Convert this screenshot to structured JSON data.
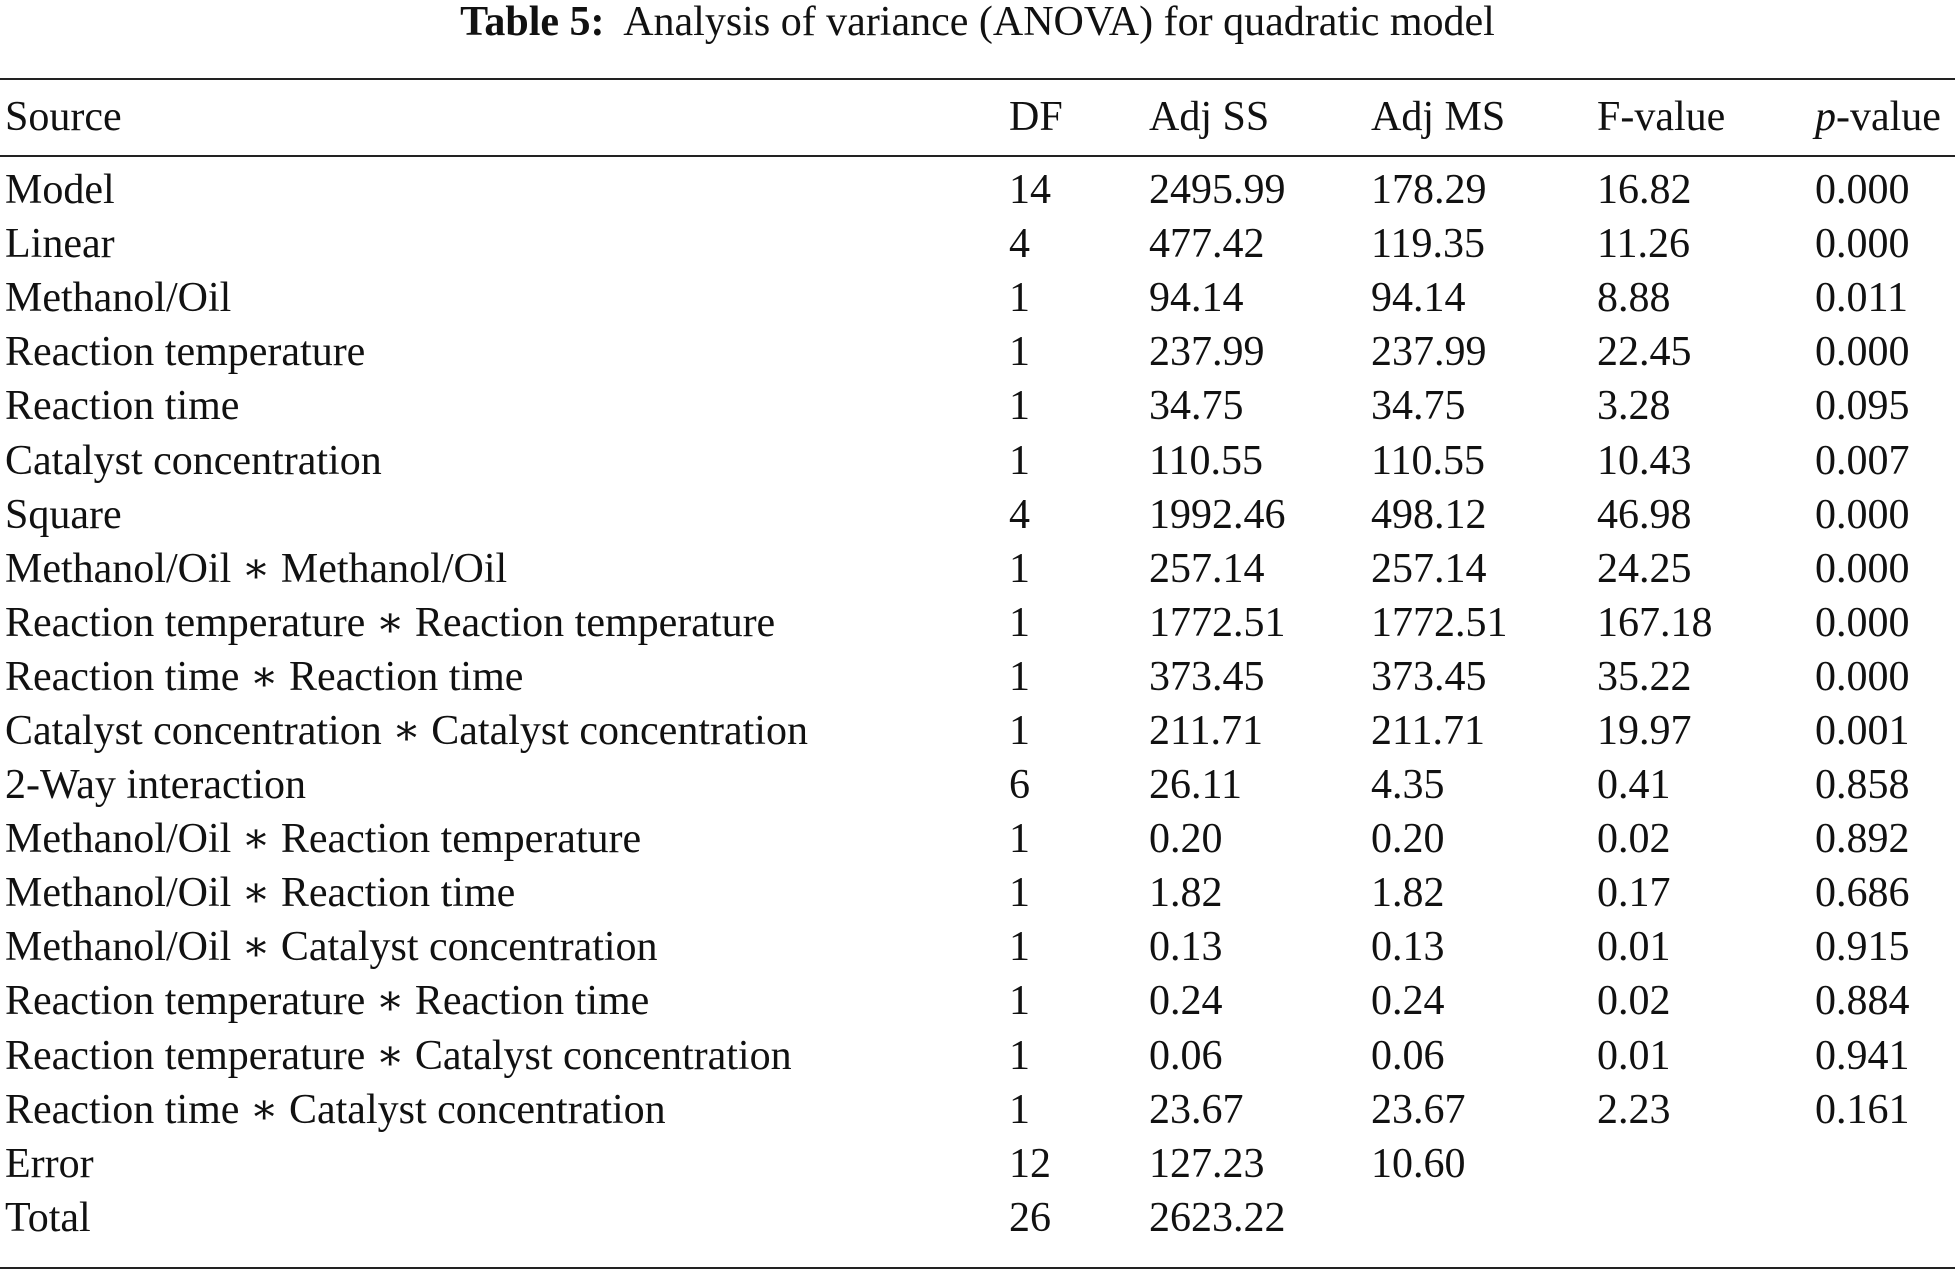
{
  "caption": {
    "label": "Table 5:",
    "title": "Analysis of variance (ANOVA) for quadratic model"
  },
  "headers": {
    "source": "Source",
    "df": "DF",
    "adj_ss": "Adj SS",
    "adj_ms": "Adj MS",
    "f_value": "F-value",
    "p_italic": "p",
    "p_rest": "-value"
  },
  "rows": [
    {
      "source": "Model",
      "df": "14",
      "adj_ss": "2495.99",
      "adj_ms": "178.29",
      "f_value": "16.82",
      "p_value": "0.000"
    },
    {
      "source": "Linear",
      "df": "4",
      "adj_ss": "477.42",
      "adj_ms": "119.35",
      "f_value": "11.26",
      "p_value": "0.000"
    },
    {
      "source": "Methanol/Oil",
      "df": "1",
      "adj_ss": "94.14",
      "adj_ms": "94.14",
      "f_value": "8.88",
      "p_value": "0.011"
    },
    {
      "source": "Reaction temperature",
      "df": "1",
      "adj_ss": "237.99",
      "adj_ms": "237.99",
      "f_value": "22.45",
      "p_value": "0.000"
    },
    {
      "source": "Reaction time",
      "df": "1",
      "adj_ss": "34.75",
      "adj_ms": "34.75",
      "f_value": "3.28",
      "p_value": "0.095"
    },
    {
      "source": "Catalyst concentration",
      "df": "1",
      "adj_ss": "110.55",
      "adj_ms": "110.55",
      "f_value": "10.43",
      "p_value": "0.007"
    },
    {
      "source": "Square",
      "df": "4",
      "adj_ss": "1992.46",
      "adj_ms": "498.12",
      "f_value": "46.98",
      "p_value": "0.000"
    },
    {
      "source": "Methanol/Oil ∗ Methanol/Oil",
      "df": "1",
      "adj_ss": "257.14",
      "adj_ms": "257.14",
      "f_value": "24.25",
      "p_value": "0.000"
    },
    {
      "source": "Reaction temperature ∗ Reaction temperature",
      "df": "1",
      "adj_ss": "1772.51",
      "adj_ms": "1772.51",
      "f_value": "167.18",
      "p_value": "0.000"
    },
    {
      "source": "Reaction time ∗ Reaction time",
      "df": "1",
      "adj_ss": "373.45",
      "adj_ms": "373.45",
      "f_value": "35.22",
      "p_value": "0.000"
    },
    {
      "source": "Catalyst concentration ∗ Catalyst concentration",
      "df": "1",
      "adj_ss": "211.71",
      "adj_ms": "211.71",
      "f_value": "19.97",
      "p_value": "0.001"
    },
    {
      "source": "2-Way interaction",
      "df": "6",
      "adj_ss": "26.11",
      "adj_ms": "4.35",
      "f_value": "0.41",
      "p_value": "0.858"
    },
    {
      "source": "Methanol/Oil ∗ Reaction temperature",
      "df": "1",
      "adj_ss": "0.20",
      "adj_ms": "0.20",
      "f_value": "0.02",
      "p_value": "0.892"
    },
    {
      "source": "Methanol/Oil ∗ Reaction time",
      "df": "1",
      "adj_ss": "1.82",
      "adj_ms": "1.82",
      "f_value": "0.17",
      "p_value": "0.686"
    },
    {
      "source": "Methanol/Oil ∗ Catalyst concentration",
      "df": "1",
      "adj_ss": "0.13",
      "adj_ms": "0.13",
      "f_value": "0.01",
      "p_value": "0.915"
    },
    {
      "source": "Reaction temperature ∗ Reaction time",
      "df": "1",
      "adj_ss": "0.24",
      "adj_ms": "0.24",
      "f_value": "0.02",
      "p_value": "0.884"
    },
    {
      "source": "Reaction temperature ∗ Catalyst concentration",
      "df": "1",
      "adj_ss": "0.06",
      "adj_ms": "0.06",
      "f_value": "0.01",
      "p_value": "0.941"
    },
    {
      "source": "Reaction time ∗ Catalyst concentration",
      "df": "1",
      "adj_ss": "23.67",
      "adj_ms": "23.67",
      "f_value": "2.23",
      "p_value": "0.161"
    },
    {
      "source": "Error",
      "df": "12",
      "adj_ss": "127.23",
      "adj_ms": "10.60",
      "f_value": "",
      "p_value": ""
    },
    {
      "source": "Total",
      "df": "26",
      "adj_ss": "2623.22",
      "adj_ms": "",
      "f_value": "",
      "p_value": ""
    }
  ]
}
